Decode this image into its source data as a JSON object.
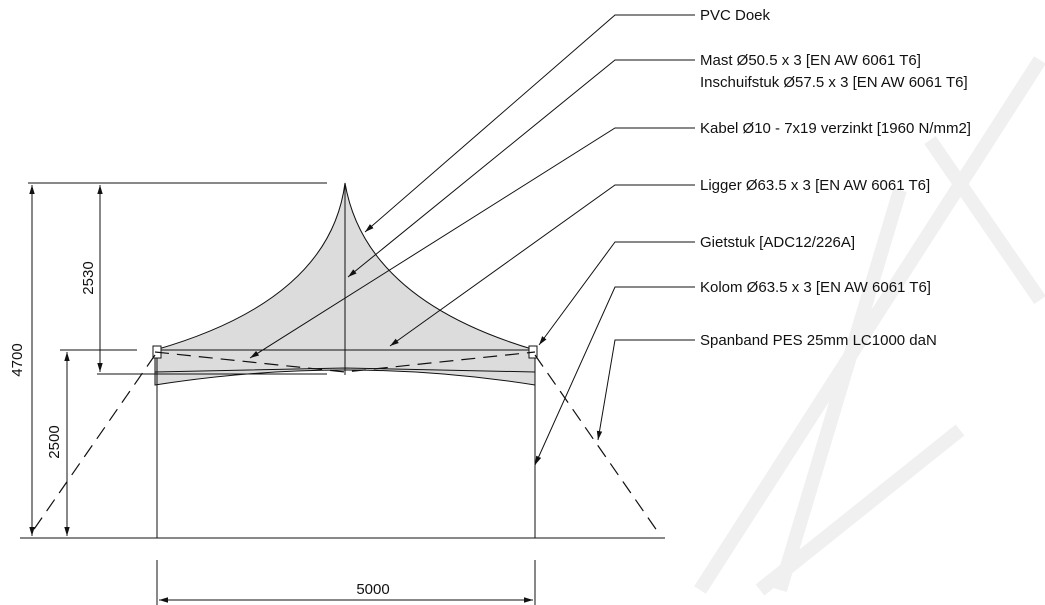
{
  "labels": [
    "PVC Doek",
    "Mast Ø50.5 x 3 [EN AW 6061 T6]",
    "Inschuifstuk Ø57.5 x 3 [EN AW 6061 T6]",
    "Kabel Ø10 - 7x19 verzinkt [1960 N/mm2]",
    "Ligger Ø63.5 x 3 [EN AW 6061 T6]",
    "Gietstuk [ADC12/226A]",
    "Kolom Ø63.5 x 3 [EN AW 6061 T6]",
    "Spanband PES 25mm LC1000 daN"
  ],
  "dimensions": {
    "total_height": 4700,
    "roof_height": 2530,
    "side_height": 2500,
    "width": 5000
  }
}
